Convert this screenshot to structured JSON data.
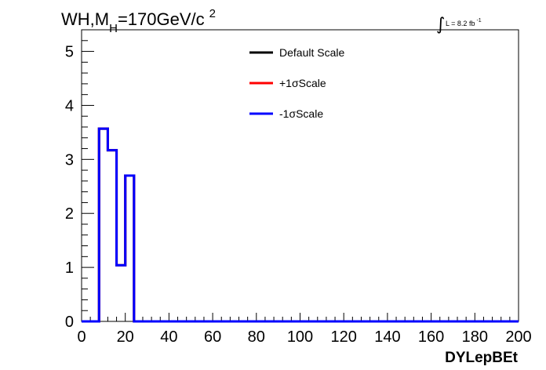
{
  "chart_data": {
    "type": "line",
    "title": "WH,M",
    "title_sub": "H",
    "title_rest": "=170GeV/c",
    "title_sup": "2",
    "lumi_prefix": "L = 8.2 fb",
    "lumi_sup": "-1",
    "xlabel": "DYLepBEt",
    "ylabel": "",
    "xlim": [
      0,
      200
    ],
    "ylim": [
      0,
      5.4
    ],
    "x_ticks": [
      "0",
      "20",
      "40",
      "60",
      "80",
      "100",
      "120",
      "140",
      "160",
      "180",
      "200"
    ],
    "y_ticks": [
      "0",
      "1",
      "2",
      "3",
      "4",
      "5"
    ],
    "bin_edges": [
      0,
      4,
      8,
      12,
      16,
      20,
      24,
      28,
      32,
      36,
      40,
      44,
      48,
      52,
      56,
      60,
      64,
      68,
      72,
      76,
      80,
      84,
      88,
      92,
      96,
      100,
      104,
      108,
      112,
      116,
      120,
      124,
      128,
      132,
      136,
      140,
      144,
      148,
      152,
      156,
      160,
      164,
      168,
      172,
      176,
      180,
      184,
      188,
      192,
      196,
      200
    ],
    "legend_position": "top-center",
    "series": [
      {
        "name": "Default Scale",
        "color": "#000000",
        "values": [
          0,
          0,
          3.57,
          3.17,
          1.04,
          2.7,
          0,
          0,
          0,
          0,
          0,
          0,
          0,
          0,
          0,
          0,
          0,
          0,
          0,
          0,
          0,
          0,
          0,
          0,
          0,
          0,
          0,
          0,
          0,
          0,
          0,
          0,
          0,
          0,
          0,
          0,
          0,
          0,
          0,
          0,
          0,
          0,
          0,
          0,
          0,
          0,
          0,
          0,
          0,
          0
        ]
      },
      {
        "name": "+1σScale",
        "color": "#ff0000",
        "values": [
          0,
          0,
          3.57,
          3.17,
          1.04,
          2.7,
          0,
          0,
          0,
          0,
          0,
          0,
          0,
          0,
          0,
          0,
          0,
          0,
          0,
          0,
          0,
          0,
          0,
          0,
          0,
          0,
          0,
          0,
          0,
          0,
          0,
          0,
          0,
          0,
          0,
          0,
          0,
          0,
          0,
          0,
          0,
          0,
          0,
          0,
          0,
          0,
          0,
          0,
          0,
          0
        ]
      },
      {
        "name": "-1σScale",
        "color": "#0000ff",
        "values": [
          0,
          0,
          3.57,
          3.17,
          1.04,
          2.7,
          0,
          0,
          0,
          0,
          0,
          0,
          0,
          0,
          0,
          0,
          0,
          0,
          0,
          0,
          0,
          0,
          0,
          0,
          0,
          0,
          0,
          0,
          0,
          0,
          0,
          0,
          0,
          0,
          0,
          0,
          0,
          0,
          0,
          0,
          0,
          0,
          0,
          0,
          0,
          0,
          0,
          0,
          0,
          0
        ]
      }
    ]
  }
}
